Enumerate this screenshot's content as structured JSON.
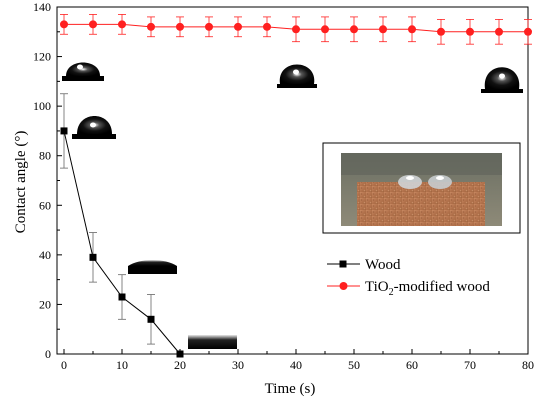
{
  "chart_data": {
    "type": "line",
    "xlabel": "Time (s)",
    "ylabel": "Contact angle (°)",
    "xlim": [
      0,
      80
    ],
    "ylim": [
      0,
      140
    ],
    "x_ticks": [
      "0",
      "10",
      "20",
      "30",
      "40",
      "50",
      "60",
      "70",
      "80"
    ],
    "y_ticks": [
      "0",
      "20",
      "40",
      "60",
      "80",
      "100",
      "120",
      "140"
    ],
    "grid": false,
    "legend_position": "right",
    "series": [
      {
        "name": "Wood",
        "name_parts": [
          "Wood"
        ],
        "color": "#000000",
        "marker": "square",
        "x": [
          0,
          5,
          10,
          15,
          20
        ],
        "values": [
          90,
          39,
          23,
          14,
          0
        ],
        "error": [
          15,
          10,
          9,
          10,
          0
        ]
      },
      {
        "name": "TiO2-modified wood",
        "name_parts": [
          "TiO",
          "2",
          "-modified wood"
        ],
        "color": "#ff2020",
        "marker": "circle",
        "x": [
          0,
          5,
          10,
          15,
          20,
          25,
          30,
          35,
          40,
          45,
          50,
          55,
          60,
          65,
          70,
          75,
          80
        ],
        "values": [
          133,
          133,
          133,
          132,
          132,
          132,
          132,
          132,
          131,
          131,
          131,
          131,
          131,
          130,
          130,
          130,
          130
        ],
        "error": [
          4,
          4,
          4,
          4,
          4,
          4,
          4,
          4,
          5,
          5,
          5,
          5,
          5,
          5,
          5,
          5,
          5
        ]
      }
    ]
  }
}
